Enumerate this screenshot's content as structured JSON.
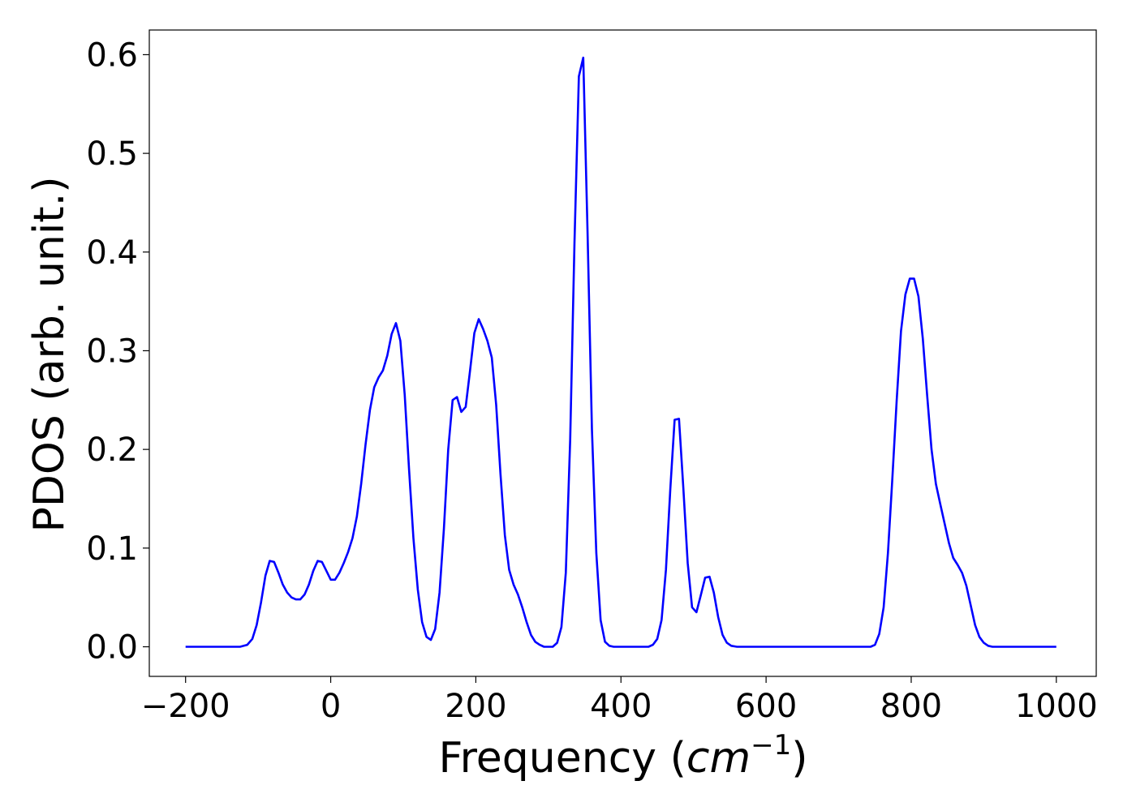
{
  "chart_data": {
    "type": "line",
    "title": "",
    "xlabel_prefix": "Frequency (",
    "xlabel_math_base": "cm",
    "xlabel_math_sup": "−1",
    "xlabel_suffix": ")",
    "ylabel": "PDOS (arb. unit.)",
    "xlim": [
      -250,
      1055
    ],
    "ylim": [
      -0.03,
      0.625
    ],
    "xticks": [
      -200,
      0,
      200,
      400,
      600,
      800,
      1000
    ],
    "xtick_labels": [
      "−200",
      "0",
      "200",
      "400",
      "600",
      "800",
      "1000"
    ],
    "yticks": [
      0.0,
      0.1,
      0.2,
      0.3,
      0.4,
      0.5,
      0.6
    ],
    "ytick_labels": [
      "0.0",
      "0.1",
      "0.2",
      "0.3",
      "0.4",
      "0.5",
      "0.6"
    ],
    "grid": false,
    "legend": "none",
    "series": [
      {
        "color": "#0000ff",
        "x": [
          -200,
          -125,
          -115,
          -108,
          -102,
          -96,
          -90,
          -84,
          -78,
          -72,
          -66,
          -60,
          -54,
          -48,
          -42,
          -36,
          -30,
          -24,
          -18,
          -12,
          -6,
          0,
          6,
          12,
          18,
          24,
          30,
          36,
          42,
          48,
          54,
          60,
          66,
          72,
          78,
          84,
          90,
          96,
          102,
          108,
          114,
          120,
          126,
          132,
          138,
          144,
          150,
          156,
          162,
          168,
          174,
          180,
          186,
          192,
          198,
          204,
          210,
          216,
          222,
          228,
          234,
          240,
          246,
          252,
          258,
          264,
          270,
          276,
          282,
          288,
          294,
          300,
          306,
          312,
          318,
          324,
          330,
          336,
          342,
          348,
          354,
          360,
          366,
          372,
          378,
          384,
          390,
          396,
          402,
          408,
          414,
          420,
          426,
          432,
          438,
          444,
          450,
          456,
          462,
          468,
          474,
          480,
          486,
          492,
          498,
          504,
          510,
          516,
          522,
          528,
          534,
          540,
          546,
          552,
          560,
          600,
          700,
          744,
          750,
          756,
          762,
          768,
          774,
          780,
          786,
          792,
          798,
          804,
          810,
          816,
          822,
          828,
          834,
          840,
          846,
          852,
          858,
          864,
          870,
          876,
          882,
          888,
          894,
          900,
          906,
          912,
          920,
          1000
        ],
        "y": [
          0.0,
          0.0,
          0.002,
          0.008,
          0.022,
          0.045,
          0.072,
          0.087,
          0.086,
          0.075,
          0.063,
          0.055,
          0.05,
          0.048,
          0.048,
          0.053,
          0.063,
          0.077,
          0.087,
          0.086,
          0.077,
          0.068,
          0.068,
          0.075,
          0.085,
          0.096,
          0.11,
          0.132,
          0.165,
          0.205,
          0.24,
          0.263,
          0.273,
          0.28,
          0.295,
          0.317,
          0.328,
          0.31,
          0.255,
          0.18,
          0.11,
          0.058,
          0.025,
          0.01,
          0.007,
          0.018,
          0.055,
          0.12,
          0.2,
          0.25,
          0.253,
          0.238,
          0.243,
          0.28,
          0.318,
          0.332,
          0.322,
          0.31,
          0.293,
          0.245,
          0.175,
          0.113,
          0.078,
          0.063,
          0.053,
          0.04,
          0.025,
          0.012,
          0.005,
          0.002,
          0.0,
          0.0,
          0.0,
          0.004,
          0.02,
          0.075,
          0.21,
          0.41,
          0.578,
          0.597,
          0.42,
          0.22,
          0.095,
          0.027,
          0.005,
          0.001,
          0.0,
          0.0,
          0.0,
          0.0,
          0.0,
          0.0,
          0.0,
          0.0,
          0.0,
          0.002,
          0.008,
          0.027,
          0.078,
          0.16,
          0.23,
          0.231,
          0.16,
          0.085,
          0.04,
          0.035,
          0.052,
          0.07,
          0.071,
          0.055,
          0.03,
          0.012,
          0.004,
          0.001,
          0.0,
          0.0,
          0.0,
          0.0,
          0.002,
          0.013,
          0.04,
          0.095,
          0.17,
          0.25,
          0.32,
          0.357,
          0.373,
          0.373,
          0.355,
          0.312,
          0.255,
          0.2,
          0.165,
          0.145,
          0.125,
          0.105,
          0.09,
          0.083,
          0.075,
          0.062,
          0.042,
          0.022,
          0.01,
          0.004,
          0.001,
          0.0,
          0.0,
          0.0
        ]
      }
    ]
  }
}
